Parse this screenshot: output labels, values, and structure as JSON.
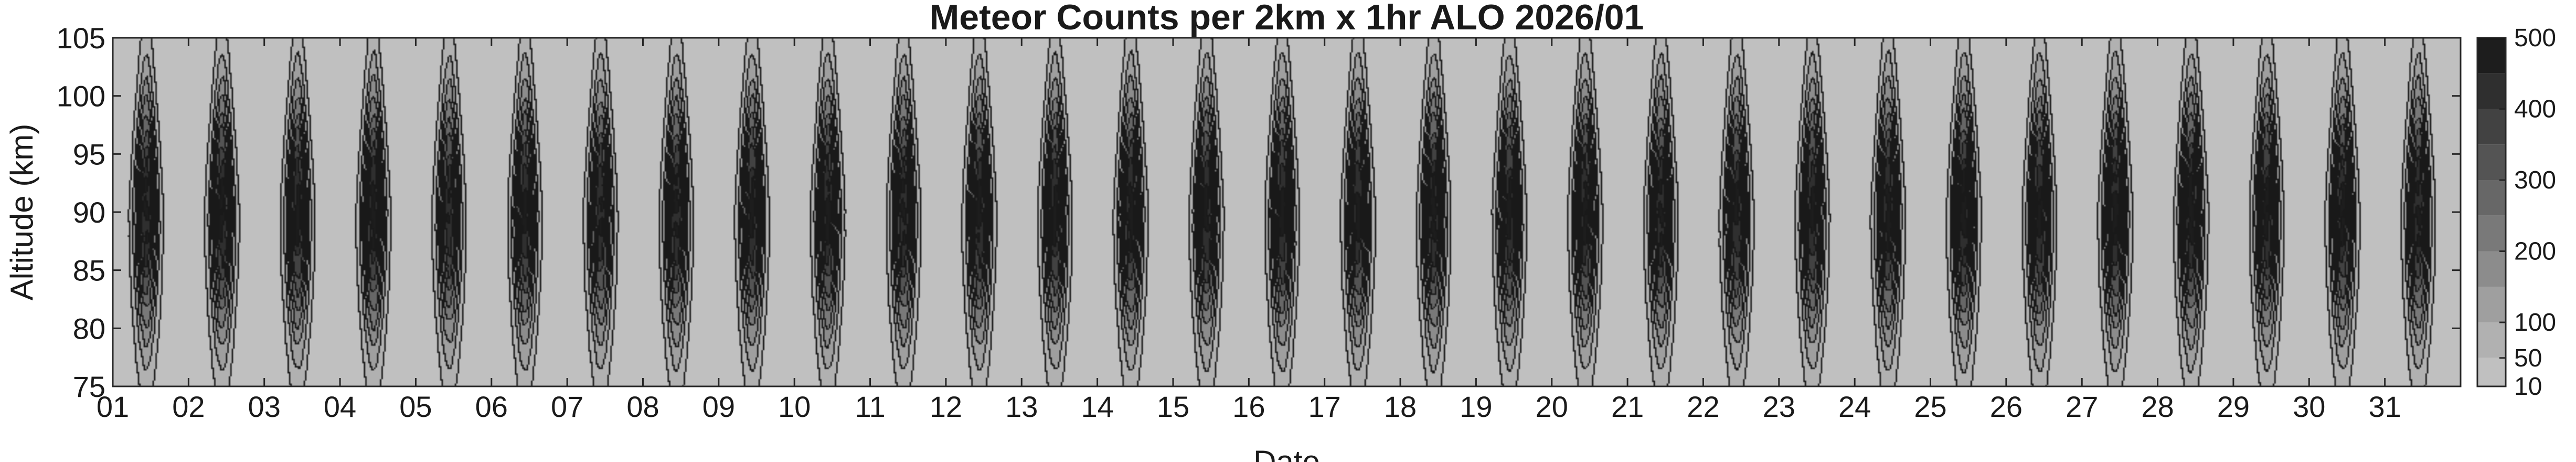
{
  "chart_data": {
    "type": "heatmap",
    "subtype": "filled-contour",
    "title": "Meteor Counts per 2km x 1hr ALO 2026/01",
    "xlabel": "Date",
    "ylabel": "Altitude (km)",
    "x_tick_labels": [
      "01",
      "02",
      "03",
      "04",
      "05",
      "06",
      "07",
      "08",
      "09",
      "10",
      "11",
      "12",
      "13",
      "14",
      "15",
      "16",
      "17",
      "18",
      "19",
      "20",
      "21",
      "22",
      "23",
      "24",
      "25",
      "26",
      "27",
      "28",
      "29",
      "30",
      "31"
    ],
    "xlim": [
      1,
      32
    ],
    "y_ticks": [
      75,
      80,
      85,
      90,
      95,
      100,
      105
    ],
    "ylim": [
      75,
      105
    ],
    "colormap": "gray-reversed",
    "color_low": "#c0c0c0",
    "color_high": "#0a0a0a",
    "contour_levels": [
      10,
      50,
      100,
      150,
      200,
      250,
      300,
      350,
      400,
      450,
      500
    ],
    "colorbar": {
      "ticks": [
        10,
        50,
        100,
        200,
        300,
        400,
        500
      ],
      "range": [
        10,
        500
      ]
    },
    "diurnal_pattern": {
      "peak_altitude_km": 90,
      "peak_local_time_fraction_of_day": 0.45,
      "daily_peak_counts": [
        470,
        480,
        475,
        480,
        450,
        470,
        460,
        470,
        475,
        480,
        470,
        480,
        475,
        480,
        475,
        480,
        480,
        480,
        475,
        480,
        470,
        470,
        470,
        480,
        490,
        480,
        490,
        485,
        480,
        480,
        470
      ],
      "background_counts": 25
    }
  }
}
